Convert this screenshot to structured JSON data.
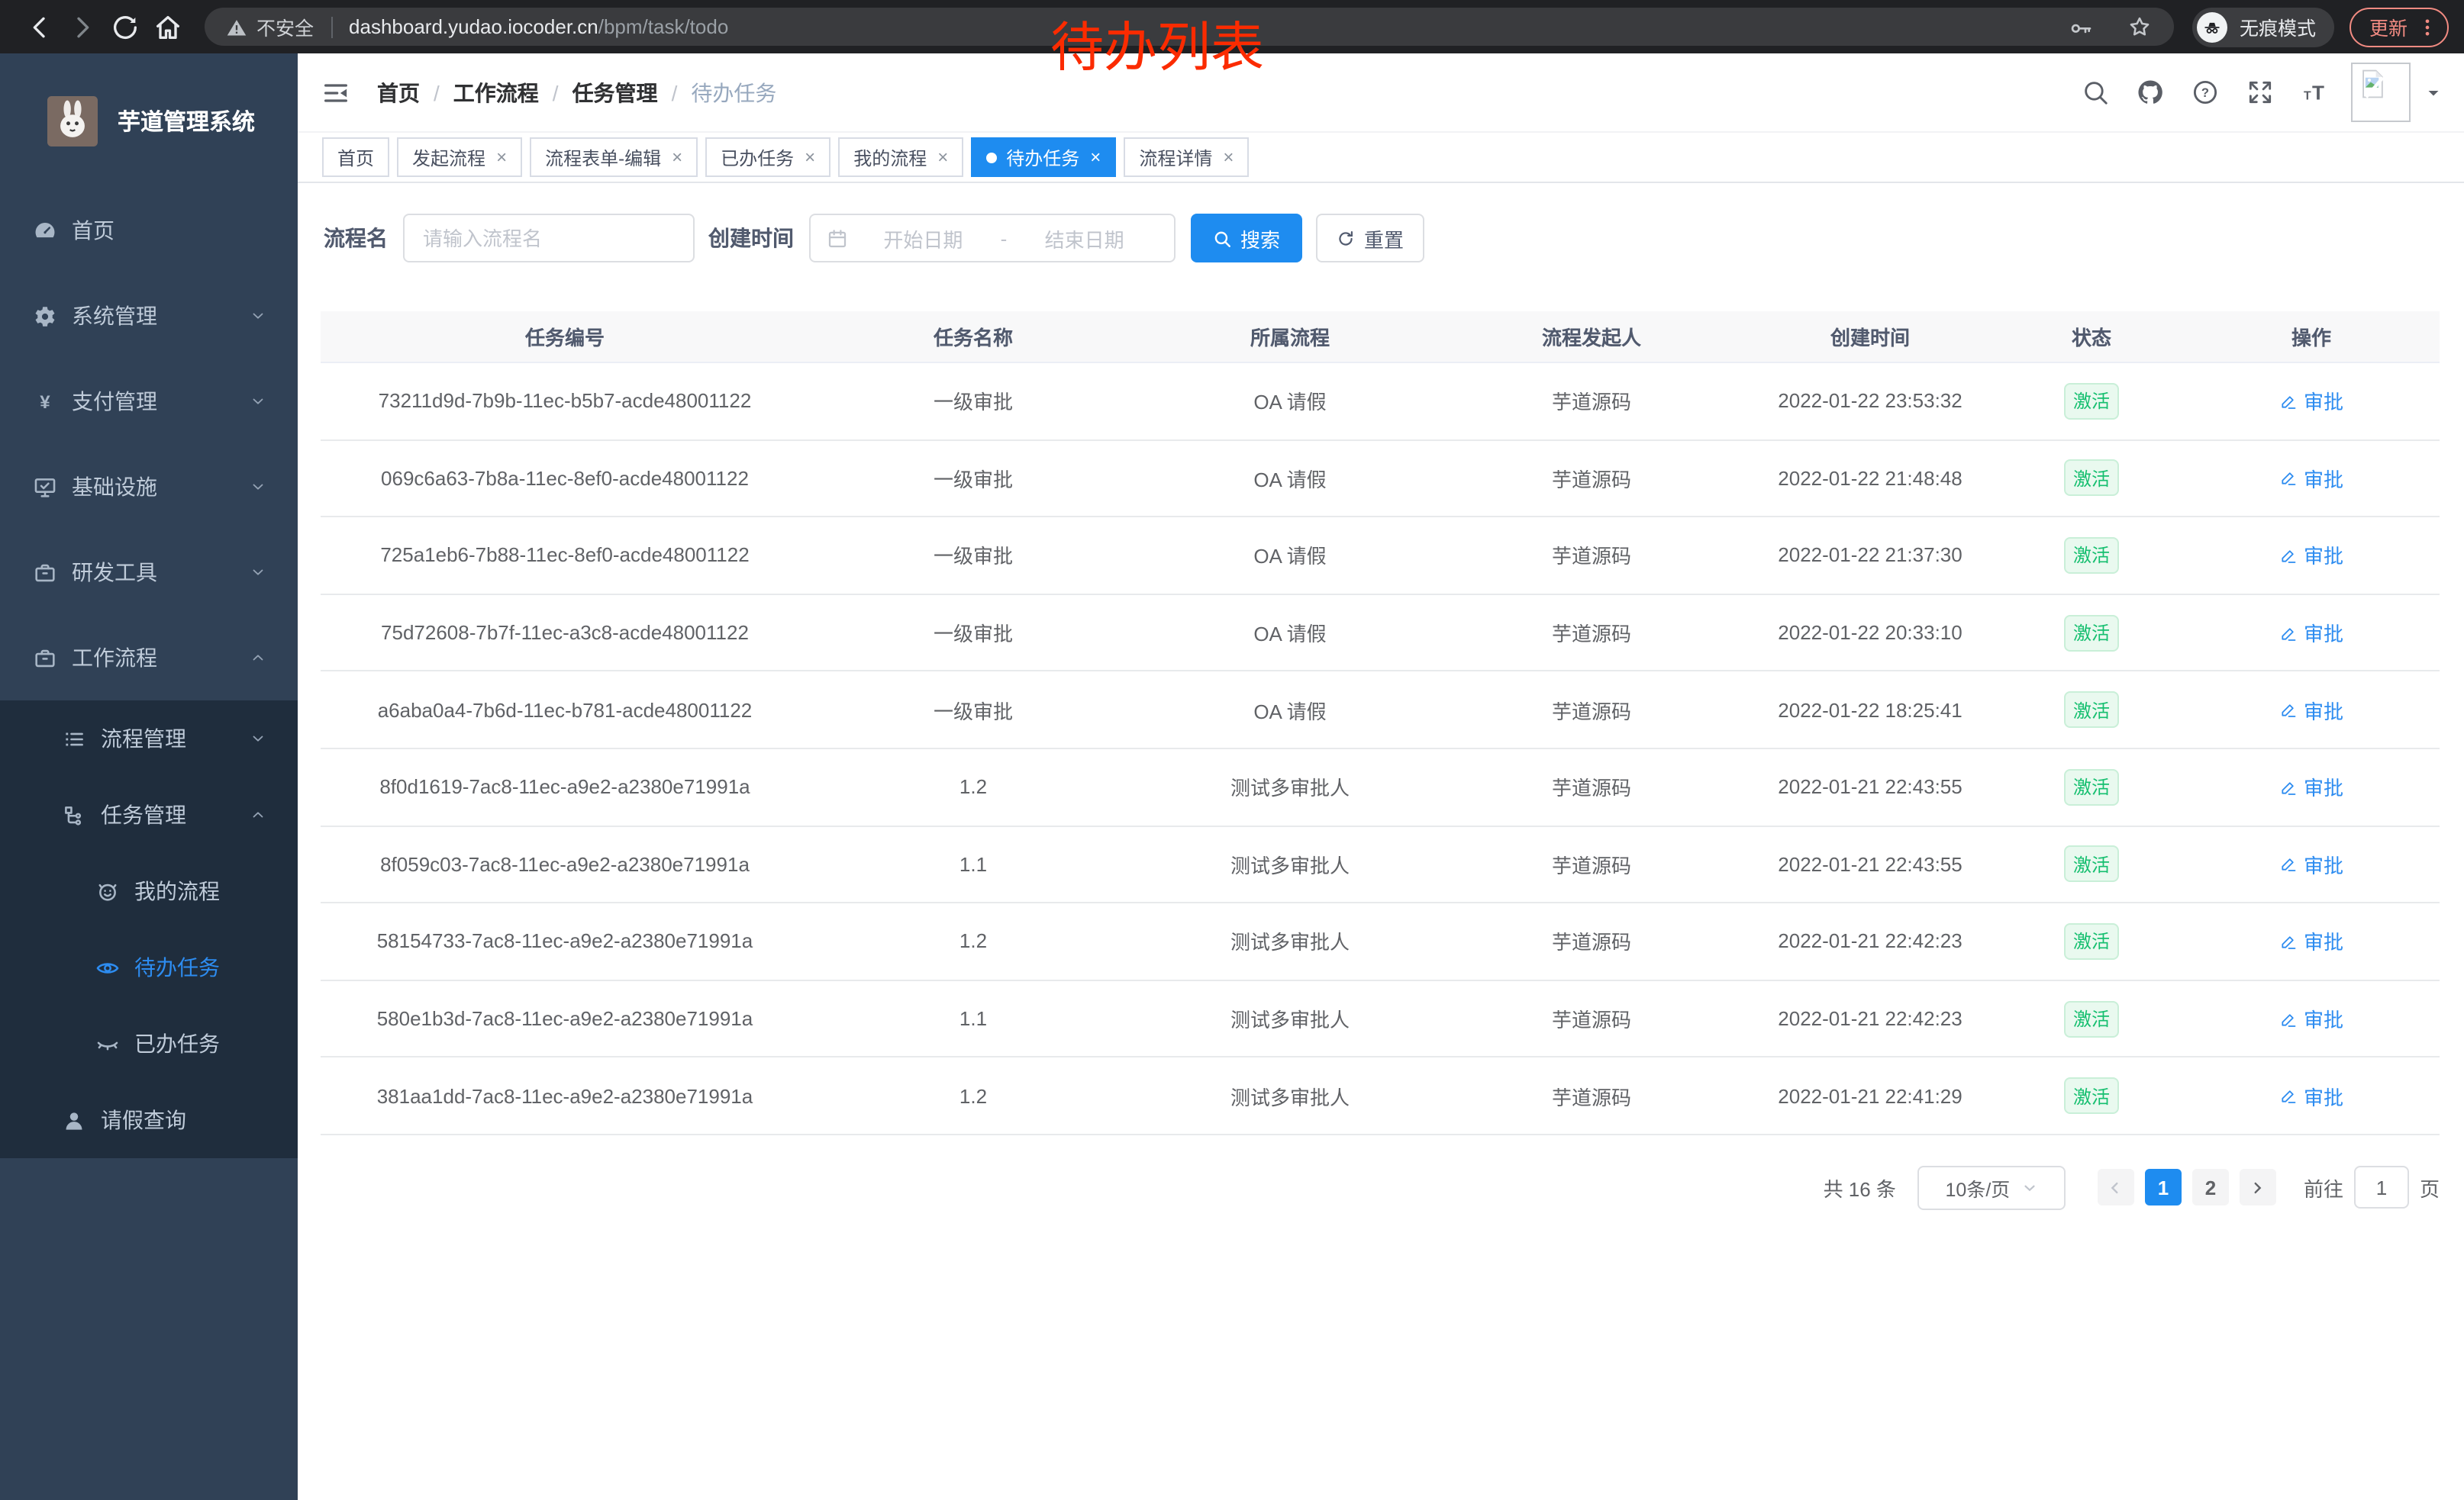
{
  "browser": {
    "insecure_label": "不安全",
    "url_host": "dashboard.yudao.iocoder.cn",
    "url_path": "/bpm/task/todo",
    "incognito_label": "无痕模式",
    "update_label": "更新"
  },
  "annotation": {
    "text": "待办列表",
    "color": "#fb2b00"
  },
  "sidebar": {
    "title": "芋道管理系统",
    "menu_top": [
      {
        "label": "首页",
        "icon": "dashboard",
        "chevron": null
      },
      {
        "label": "系统管理",
        "icon": "gear",
        "chevron": "down"
      },
      {
        "label": "支付管理",
        "icon": "yen",
        "chevron": "down"
      },
      {
        "label": "基础设施",
        "icon": "monitor",
        "chevron": "down"
      },
      {
        "label": "研发工具",
        "icon": "toolbox",
        "chevron": "down"
      },
      {
        "label": "工作流程",
        "icon": "toolbox",
        "chevron": "up"
      }
    ],
    "menu_sub": [
      {
        "label": "流程管理",
        "icon": "list",
        "chevron": "down",
        "level": 2,
        "active": false
      },
      {
        "label": "任务管理",
        "icon": "tree",
        "chevron": "up",
        "level": 2,
        "active": false
      },
      {
        "label": "我的流程",
        "icon": "people",
        "chevron": null,
        "level": 3,
        "active": false
      },
      {
        "label": "待办任务",
        "icon": "eye",
        "chevron": null,
        "level": 3,
        "active": true
      },
      {
        "label": "已办任务",
        "icon": "eye-closed",
        "chevron": null,
        "level": 3,
        "active": false
      },
      {
        "label": "请假查询",
        "icon": "user",
        "chevron": null,
        "level": 2,
        "active": false
      }
    ]
  },
  "header": {
    "breadcrumb": [
      "首页",
      "工作流程",
      "任务管理",
      "待办任务"
    ],
    "action_icons": [
      "search",
      "github",
      "help",
      "fullscreen",
      "font-size"
    ]
  },
  "tabs": [
    {
      "label": "首页",
      "closable": false,
      "active": false
    },
    {
      "label": "发起流程",
      "closable": true,
      "active": false
    },
    {
      "label": "流程表单-编辑",
      "closable": true,
      "active": false
    },
    {
      "label": "已办任务",
      "closable": true,
      "active": false
    },
    {
      "label": "我的流程",
      "closable": true,
      "active": false
    },
    {
      "label": "待办任务",
      "closable": true,
      "active": true
    },
    {
      "label": "流程详情",
      "closable": true,
      "active": false
    }
  ],
  "filters": {
    "name_label": "流程名",
    "name_placeholder": "请输入流程名",
    "time_label": "创建时间",
    "start_placeholder": "开始日期",
    "range_separator": "-",
    "end_placeholder": "结束日期",
    "search_label": "搜索",
    "reset_label": "重置"
  },
  "table": {
    "columns": [
      "任务编号",
      "任务名称",
      "所属流程",
      "流程发起人",
      "创建时间",
      "状态",
      "操作"
    ],
    "rows": [
      {
        "id": "73211d9d-7b9b-11ec-b5b7-acde48001122",
        "name": "一级审批",
        "process": "OA 请假",
        "starter": "芋道源码",
        "created": "2022-01-22 23:53:32",
        "status": "激活",
        "action": "审批"
      },
      {
        "id": "069c6a63-7b8a-11ec-8ef0-acde48001122",
        "name": "一级审批",
        "process": "OA 请假",
        "starter": "芋道源码",
        "created": "2022-01-22 21:48:48",
        "status": "激活",
        "action": "审批"
      },
      {
        "id": "725a1eb6-7b88-11ec-8ef0-acde48001122",
        "name": "一级审批",
        "process": "OA 请假",
        "starter": "芋道源码",
        "created": "2022-01-22 21:37:30",
        "status": "激活",
        "action": "审批"
      },
      {
        "id": "75d72608-7b7f-11ec-a3c8-acde48001122",
        "name": "一级审批",
        "process": "OA 请假",
        "starter": "芋道源码",
        "created": "2022-01-22 20:33:10",
        "status": "激活",
        "action": "审批"
      },
      {
        "id": "a6aba0a4-7b6d-11ec-b781-acde48001122",
        "name": "一级审批",
        "process": "OA 请假",
        "starter": "芋道源码",
        "created": "2022-01-22 18:25:41",
        "status": "激活",
        "action": "审批"
      },
      {
        "id": "8f0d1619-7ac8-11ec-a9e2-a2380e71991a",
        "name": "1.2",
        "process": "测试多审批人",
        "starter": "芋道源码",
        "created": "2022-01-21 22:43:55",
        "status": "激活",
        "action": "审批"
      },
      {
        "id": "8f059c03-7ac8-11ec-a9e2-a2380e71991a",
        "name": "1.1",
        "process": "测试多审批人",
        "starter": "芋道源码",
        "created": "2022-01-21 22:43:55",
        "status": "激活",
        "action": "审批"
      },
      {
        "id": "58154733-7ac8-11ec-a9e2-a2380e71991a",
        "name": "1.2",
        "process": "测试多审批人",
        "starter": "芋道源码",
        "created": "2022-01-21 22:42:23",
        "status": "激活",
        "action": "审批"
      },
      {
        "id": "580e1b3d-7ac8-11ec-a9e2-a2380e71991a",
        "name": "1.1",
        "process": "测试多审批人",
        "starter": "芋道源码",
        "created": "2022-01-21 22:42:23",
        "status": "激活",
        "action": "审批"
      },
      {
        "id": "381aa1dd-7ac8-11ec-a9e2-a2380e71991a",
        "name": "1.2",
        "process": "测试多审批人",
        "starter": "芋道源码",
        "created": "2022-01-21 22:41:29",
        "status": "激活",
        "action": "审批"
      }
    ]
  },
  "pagination": {
    "total_label": "共 16 条",
    "page_size": "10条/页",
    "pages": [
      "1",
      "2"
    ],
    "active_page": "1",
    "goto_label": "前往",
    "goto_value": "1",
    "goto_suffix": "页"
  },
  "colors": {
    "accent": "#1e8cf0",
    "link_blue": "#2d8cf0",
    "success_green": "#15bf6f",
    "success_bg": "#e9f9ef",
    "annotation_red": "#fb2b00",
    "sidebar_bg": "#304156",
    "submenu_bg": "#1f2d3d",
    "toolbar_bg": "#202124",
    "update_salmon": "#f28b82"
  }
}
